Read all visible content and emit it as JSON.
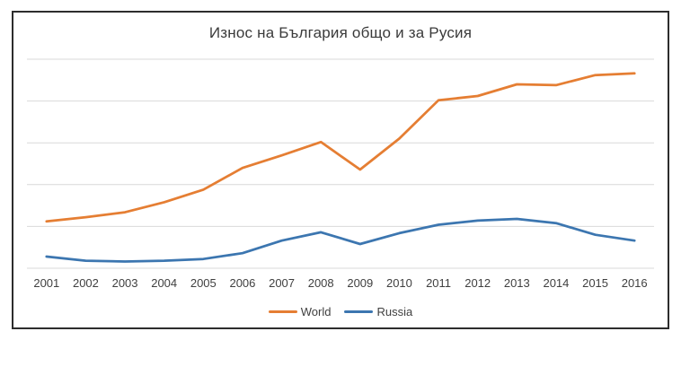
{
  "chart_data": {
    "type": "line",
    "title": "Износ на България общо и за Русия",
    "xlabel": "",
    "ylabel": "",
    "categories": [
      "2001",
      "2002",
      "2003",
      "2004",
      "2005",
      "2006",
      "2007",
      "2008",
      "2009",
      "2010",
      "2011",
      "2012",
      "2013",
      "2014",
      "2015",
      "2016"
    ],
    "series": [
      {
        "name": "World",
        "color": "#E57E33",
        "values": [
          5.6,
          6.1,
          6.7,
          7.9,
          9.4,
          12.0,
          13.5,
          15.1,
          11.8,
          15.5,
          20.1,
          20.6,
          22.0,
          21.9,
          23.1,
          23.3
        ]
      },
      {
        "name": "Russia",
        "color": "#3C76B0",
        "values": [
          1.4,
          0.9,
          0.8,
          0.9,
          1.1,
          1.8,
          3.3,
          4.3,
          2.9,
          4.2,
          5.2,
          5.7,
          5.9,
          5.4,
          4.0,
          3.3
        ]
      }
    ],
    "ylim": [
      0,
      25
    ],
    "gridline_step": 5,
    "gridline_color": "#D9D9D9",
    "y_axis_labels": "none",
    "grid": "horizontal",
    "legend_position": "bottom"
  }
}
